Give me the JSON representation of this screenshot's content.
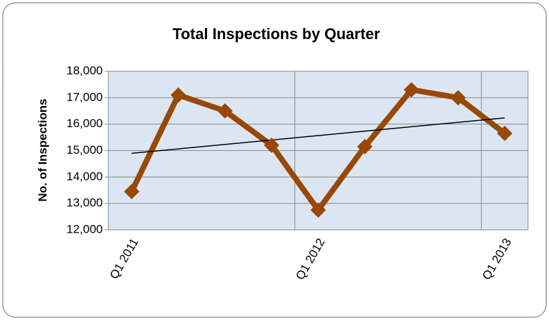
{
  "chart_data": {
    "type": "line",
    "title": "Total Inspections by Quarter",
    "y_label": "No. of Inspections",
    "categories": [
      "Q1 2011",
      null,
      null,
      null,
      "Q1 2012",
      null,
      null,
      null,
      "Q1 2013"
    ],
    "series": [
      {
        "name": "Total Inspections",
        "color": "#984807",
        "values": [
          13450,
          17100,
          16500,
          15200,
          12750,
          15150,
          17300,
          17000,
          15650
        ]
      }
    ],
    "ylim": [
      12000,
      18000
    ],
    "yticks": [
      {
        "value": 12000,
        "label": "12,000"
      },
      {
        "value": 13000,
        "label": "13,000"
      },
      {
        "value": 14000,
        "label": "14,000"
      },
      {
        "value": 15000,
        "label": "15,000"
      },
      {
        "value": 16000,
        "label": "16,000"
      },
      {
        "value": 17000,
        "label": "17,000"
      },
      {
        "value": 18000,
        "label": "18,000"
      }
    ],
    "grid": true,
    "trendline": "linear",
    "plot_background": "#dce6f2"
  }
}
